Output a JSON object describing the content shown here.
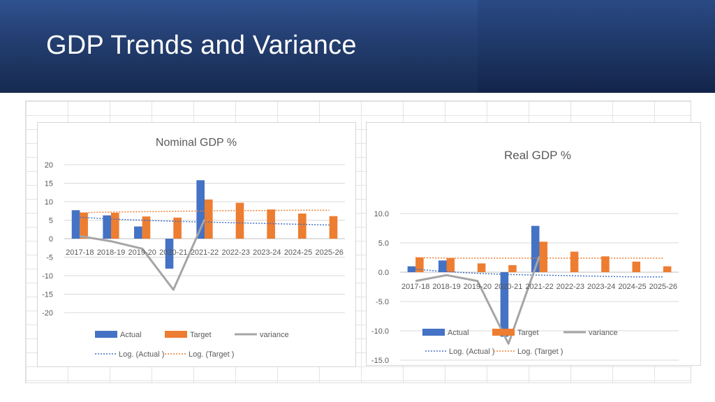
{
  "slide": {
    "title": "GDP Trends and Variance"
  },
  "colors": {
    "actual": "#4472c4",
    "target": "#ed7d31",
    "variance": "#a5a5a5",
    "grid": "#d9d9d9",
    "text": "#595959"
  },
  "chart_data": [
    {
      "type": "bar",
      "title": "Nominal GDP %",
      "categories": [
        "2017-18",
        "2018-19",
        "2019-20",
        "2020-21",
        "2021-22",
        "2022-23",
        "2023-24",
        "2024-25",
        "2025-26"
      ],
      "ylim": [
        -20,
        20
      ],
      "yticks": [
        "20",
        "15",
        "10",
        "5",
        "0",
        "-5",
        "-10",
        "-15",
        "-20"
      ],
      "series": [
        {
          "name": "Actual",
          "kind": "bar",
          "values": [
            7.7,
            6.3,
            3.3,
            -8.1,
            15.8,
            null,
            null,
            null,
            null
          ]
        },
        {
          "name": "Target",
          "kind": "bar",
          "values": [
            7.0,
            7.0,
            6.0,
            5.7,
            10.6,
            9.7,
            7.9,
            6.8,
            6.1
          ]
        },
        {
          "name": "variance",
          "kind": "line",
          "values": [
            0.7,
            -0.7,
            -2.7,
            -13.8,
            5.2,
            null,
            null,
            null,
            null
          ]
        },
        {
          "name": "Log. (Actual )",
          "kind": "trend",
          "values": [
            5.8,
            5.3,
            5.0,
            4.7,
            4.5,
            4.3,
            4.1,
            3.9,
            3.7
          ]
        },
        {
          "name": "Log. (Target )",
          "kind": "trend",
          "values": [
            7.0,
            7.2,
            7.3,
            7.4,
            7.5,
            7.6,
            7.6,
            7.7,
            7.7
          ]
        }
      ],
      "legend": "bottom"
    },
    {
      "type": "bar",
      "title": "Real GDP %",
      "categories": [
        "2017-18",
        "2018-19",
        "2019-20",
        "2020-21",
        "2021-22",
        "2022-23",
        "2023-24",
        "2024-25",
        "2025-26"
      ],
      "ylim": [
        -15,
        10
      ],
      "yticks": [
        "10.0",
        "5.0",
        "0.0",
        "-5.0",
        "-10.0",
        "-15.0"
      ],
      "series": [
        {
          "name": "Actual",
          "kind": "bar",
          "values": [
            1.0,
            2.0,
            null,
            -11.0,
            7.9,
            null,
            null,
            null,
            null
          ]
        },
        {
          "name": "Target",
          "kind": "bar",
          "values": [
            2.5,
            2.4,
            1.5,
            1.2,
            5.2,
            3.5,
            2.7,
            1.8,
            1.0
          ]
        },
        {
          "name": "variance",
          "kind": "line",
          "values": [
            -1.5,
            -0.5,
            -1.5,
            -12.2,
            2.7,
            null,
            null,
            null,
            null
          ]
        },
        {
          "name": "Log. (Actual )",
          "kind": "trend",
          "values": [
            0.5,
            0.1,
            -0.2,
            -0.4,
            -0.5,
            -0.6,
            -0.7,
            -0.8,
            -0.8
          ]
        },
        {
          "name": "Log. (Target )",
          "kind": "trend",
          "values": [
            2.5,
            2.4,
            2.4,
            2.4,
            2.4,
            2.4,
            2.4,
            2.4,
            2.4
          ]
        }
      ],
      "legend": "bottom"
    }
  ]
}
